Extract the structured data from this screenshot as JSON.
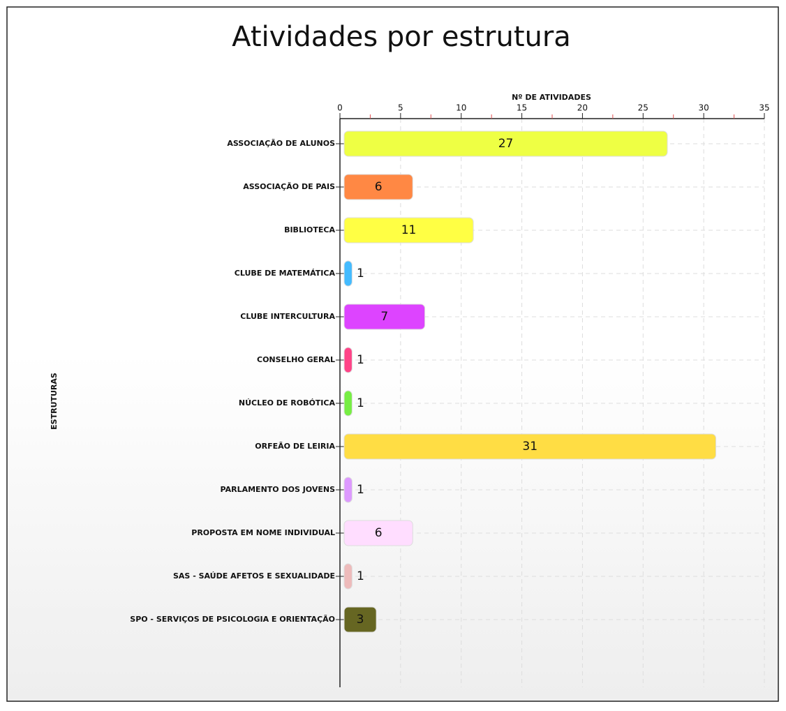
{
  "chart_data": {
    "type": "hbar",
    "title": "Atividades por estrutura",
    "x_label": "Nº DE ATIVIDADES",
    "y_label": "ESTRUTURAS",
    "categories": [
      "ASSOCIAÇÃO DE ALUNOS",
      "ASSOCIAÇÃO DE PAIS",
      "BIBLIOTECA",
      "CLUBE DE MATEMÁTICA",
      "CLUBE INTERCULTURA",
      "CONSELHO GERAL",
      "NÚCLEO DE ROBÓTICA",
      "ORFEÃO DE LEIRIA",
      "PARLAMENTO DOS JOVENS",
      "PROPOSTA EM NOME INDIVIDUAL",
      "SAS - SAÚDE AFETOS E SEXUALIDADE",
      "SPO - SERVIÇOS DE PSICOLOGIA E ORIENTAÇÃO"
    ],
    "values": [
      27,
      6,
      11,
      1,
      7,
      1,
      1,
      31,
      1,
      6,
      1,
      3
    ],
    "colors": [
      "#eeff44",
      "#ff8844",
      "#ffff44",
      "#44bbff",
      "#dd44ff",
      "#ff4488",
      "#77ee44",
      "#ffdd44",
      "#dd99ff",
      "#ffddff",
      "#eebbbb",
      "#666622"
    ],
    "xlim": [
      0,
      35
    ],
    "xticks": [
      0,
      5,
      10,
      15,
      20,
      25,
      30,
      35
    ],
    "minor_tick_color": "#e05050",
    "grid": true
  }
}
